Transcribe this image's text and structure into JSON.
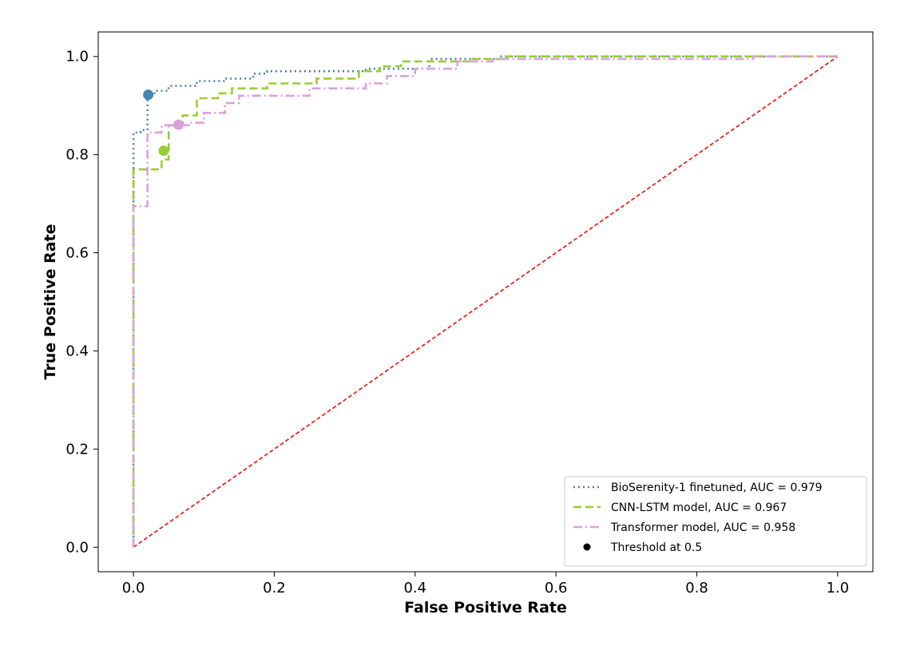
{
  "chart_data": {
    "type": "line",
    "title": "",
    "xlabel": "False Positive Rate",
    "ylabel": "True Positive Rate",
    "xlim": [
      -0.05,
      1.05
    ],
    "ylim": [
      -0.05,
      1.05
    ],
    "xticks": [
      "0.0",
      "0.2",
      "0.4",
      "0.6",
      "0.8",
      "1.0"
    ],
    "yticks": [
      "0.0",
      "0.2",
      "0.4",
      "0.6",
      "0.8",
      "1.0"
    ],
    "grid": false,
    "legend_position": "bottom-right",
    "series": [
      {
        "name": "BioSerenity-1 finetuned, AUC = 0.979",
        "color": "#4682b4",
        "style": "dotted",
        "x": [
          0,
          0,
          0.01,
          0.01,
          0.02,
          0.02,
          0.03,
          0.03,
          0.05,
          0.05,
          0.09,
          0.09,
          0.13,
          0.13,
          0.17,
          0.17,
          0.19,
          0.19,
          0.23,
          0.23,
          0.33,
          0.33,
          0.42,
          0.42,
          0.52,
          0.52,
          1.0
        ],
        "y": [
          0,
          0.845,
          0.845,
          0.85,
          0.85,
          0.92,
          0.92,
          0.93,
          0.93,
          0.94,
          0.94,
          0.95,
          0.95,
          0.955,
          0.955,
          0.965,
          0.965,
          0.97,
          0.97,
          0.97,
          0.97,
          0.975,
          0.975,
          0.995,
          0.995,
          1.0,
          1.0
        ]
      },
      {
        "name": "CNN-LSTM model, AUC = 0.967",
        "color": "#9acd32",
        "style": "dashed",
        "x": [
          0,
          0,
          0.02,
          0.02,
          0.04,
          0.04,
          0.05,
          0.05,
          0.07,
          0.07,
          0.09,
          0.09,
          0.12,
          0.12,
          0.14,
          0.14,
          0.19,
          0.19,
          0.26,
          0.26,
          0.32,
          0.32,
          0.35,
          0.35,
          0.38,
          0.38,
          0.42,
          0.42,
          0.48,
          0.48,
          0.53,
          0.53,
          1.0
        ],
        "y": [
          0,
          0.77,
          0.77,
          0.77,
          0.77,
          0.79,
          0.79,
          0.86,
          0.86,
          0.88,
          0.88,
          0.915,
          0.915,
          0.925,
          0.925,
          0.935,
          0.935,
          0.945,
          0.945,
          0.955,
          0.955,
          0.97,
          0.97,
          0.98,
          0.98,
          0.99,
          0.99,
          0.99,
          0.99,
          0.995,
          0.995,
          1.0,
          1.0
        ]
      },
      {
        "name": "Transformer model, AUC = 0.958",
        "color": "#dda0dd",
        "style": "dashdot",
        "x": [
          0,
          0,
          0.02,
          0.02,
          0.04,
          0.04,
          0.08,
          0.08,
          0.1,
          0.1,
          0.13,
          0.13,
          0.15,
          0.15,
          0.19,
          0.19,
          0.25,
          0.25,
          0.33,
          0.33,
          0.36,
          0.36,
          0.4,
          0.4,
          0.46,
          0.46,
          0.51,
          0.51,
          0.88,
          0.88,
          1.0
        ],
        "y": [
          0,
          0.695,
          0.695,
          0.845,
          0.845,
          0.86,
          0.86,
          0.865,
          0.865,
          0.885,
          0.885,
          0.905,
          0.905,
          0.92,
          0.92,
          0.92,
          0.92,
          0.935,
          0.935,
          0.945,
          0.945,
          0.96,
          0.96,
          0.975,
          0.975,
          0.99,
          0.99,
          0.995,
          0.995,
          1.0,
          1.0
        ]
      }
    ],
    "thresholds": [
      {
        "series": 0,
        "x": 0.021,
        "y": 0.922,
        "color": "#4682b4"
      },
      {
        "series": 1,
        "x": 0.043,
        "y": 0.808,
        "color": "#9acd32"
      },
      {
        "series": 2,
        "x": 0.064,
        "y": 0.861,
        "color": "#dda0dd"
      }
    ],
    "threshold_label": "Threshold at 0.5",
    "diagonal": {
      "x": [
        0,
        1
      ],
      "y": [
        0,
        1
      ],
      "color": "#e8231c",
      "style": "dashed"
    }
  }
}
